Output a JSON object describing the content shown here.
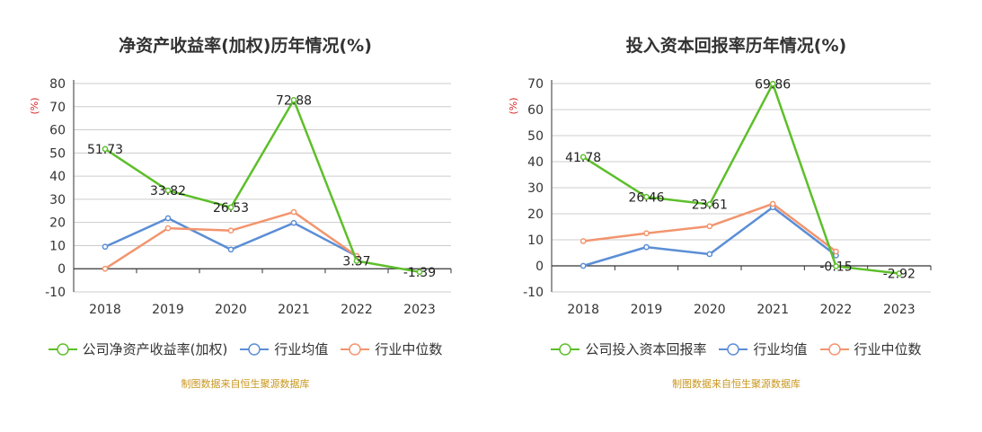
{
  "source_text": "制图数据来自恒生聚源数据库",
  "chart_data": [
    {
      "type": "line",
      "title": "净资产收益率(加权)历年情况(%)",
      "ylabel": "(%)",
      "xlabel": "",
      "categories": [
        "2018",
        "2019",
        "2020",
        "2021",
        "2022",
        "2023"
      ],
      "ylim": [
        -10,
        80
      ],
      "yticks": [
        -10,
        0,
        10,
        20,
        30,
        40,
        50,
        60,
        70,
        80
      ],
      "grid": true,
      "legend_position": "bottom",
      "series": [
        {
          "name": "公司净资产收益率(加权)",
          "color": "#5dbf2a",
          "labeled": true,
          "values": [
            51.73,
            33.82,
            26.53,
            72.88,
            3.37,
            -1.39
          ],
          "labels": [
            "51.73",
            "33.82",
            "26.53",
            "72.88",
            "3.37",
            "-1.39"
          ]
        },
        {
          "name": "行业均值",
          "color": "#5b8ed6",
          "labeled": false,
          "values": [
            9.5,
            21.8,
            8.3,
            19.8,
            5.5,
            null
          ]
        },
        {
          "name": "行业中位数",
          "color": "#f2956e",
          "labeled": false,
          "values": [
            0,
            17.5,
            16.5,
            24.5,
            5.5,
            null
          ]
        }
      ]
    },
    {
      "type": "line",
      "title": "投入资本回报率历年情况(%)",
      "ylabel": "(%)",
      "xlabel": "",
      "categories": [
        "2018",
        "2019",
        "2020",
        "2021",
        "2022",
        "2023"
      ],
      "ylim": [
        -10,
        70
      ],
      "yticks": [
        -10,
        0,
        10,
        20,
        30,
        40,
        50,
        60,
        70
      ],
      "grid": true,
      "legend_position": "bottom",
      "series": [
        {
          "name": "公司投入资本回报率",
          "color": "#5dbf2a",
          "labeled": true,
          "values": [
            41.78,
            26.46,
            23.61,
            69.86,
            -0.15,
            -2.92
          ],
          "labels": [
            "41.78",
            "26.46",
            "23.61",
            "69.86",
            "-0.15",
            "-2.92"
          ]
        },
        {
          "name": "行业均值",
          "color": "#5b8ed6",
          "labeled": false,
          "values": [
            0,
            7.2,
            4.5,
            22.5,
            4.0,
            null
          ]
        },
        {
          "name": "行业中位数",
          "color": "#f2956e",
          "labeled": false,
          "values": [
            9.5,
            12.5,
            15.2,
            23.8,
            5.5,
            null
          ]
        }
      ]
    }
  ]
}
